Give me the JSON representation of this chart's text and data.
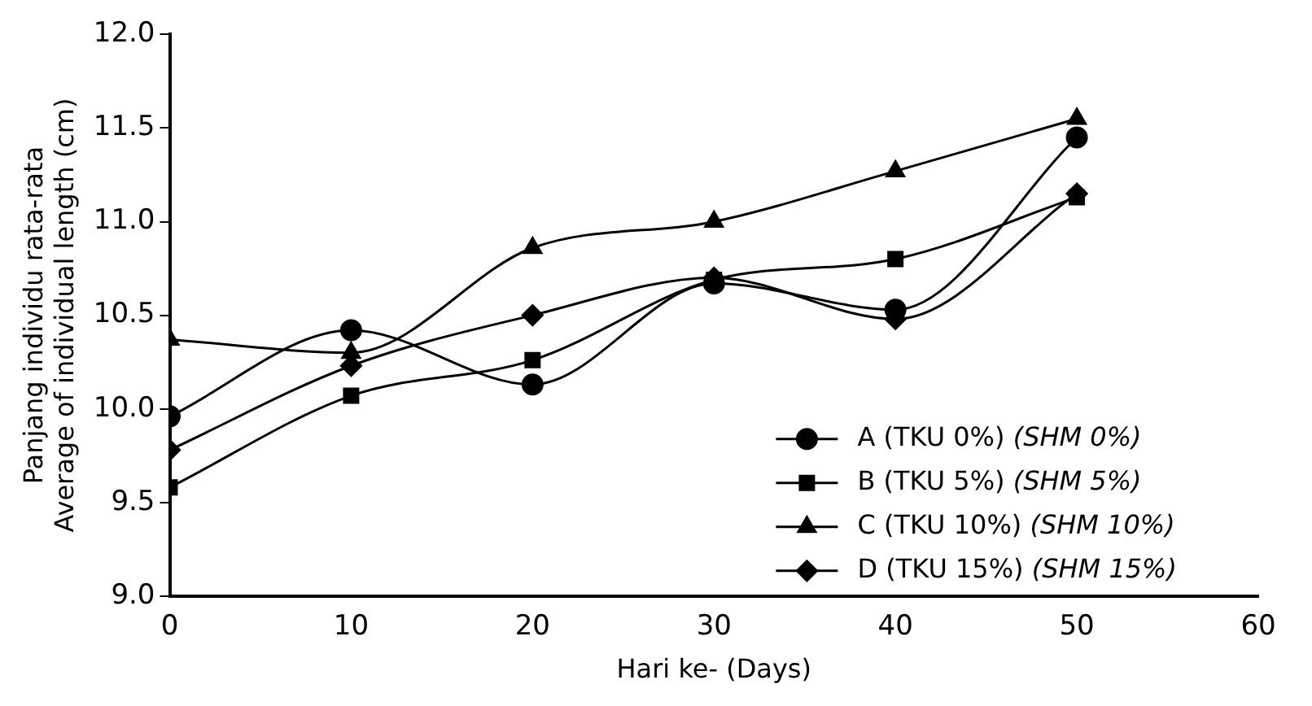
{
  "chart_data": {
    "type": "line",
    "xlabel": "Hari ke- (Days)",
    "ylabel": "Panjang individu rata-rata\nAverage of individual length (cm)",
    "x": [
      0,
      10,
      20,
      30,
      40,
      50
    ],
    "series": [
      {
        "name": "A (TKU 0%) (SHM 0%)",
        "color": "#000000",
        "marker": "circle",
        "values": [
          9.96,
          10.42,
          10.13,
          10.67,
          10.53,
          11.45
        ]
      },
      {
        "name": "B (TKU 5%) (SHM 5%)",
        "color": "#000000",
        "marker": "square",
        "values": [
          9.58,
          10.07,
          10.26,
          10.69,
          10.8,
          11.13
        ]
      },
      {
        "name": "C (TKU 10%) (SHM 10%)",
        "color": "#000000",
        "marker": "triangle",
        "values": [
          10.37,
          10.3,
          10.86,
          11.0,
          11.27,
          11.55
        ]
      },
      {
        "name": "D (TKU 15%) (SHM 15%)",
        "color": "#000000",
        "marker": "diamond",
        "values": [
          9.78,
          10.23,
          10.5,
          10.7,
          10.48,
          11.15
        ]
      }
    ],
    "xlim": [
      0,
      60
    ],
    "xticks": [
      0,
      10,
      20,
      30,
      40,
      50,
      60
    ],
    "ylim": [
      9,
      12
    ],
    "yticks": [
      {
        "value": 9,
        "label": "9.0"
      },
      {
        "value": 9.5,
        "label": "9.5"
      },
      {
        "value": 10,
        "label": "10.0"
      },
      {
        "value": 10.5,
        "label": "10.5"
      },
      {
        "value": 11,
        "label": "11.0"
      },
      {
        "value": 11.5,
        "label": "11.5"
      },
      {
        "value": 12,
        "label": "12.0"
      }
    ],
    "grid": false,
    "legend": "bottom right",
    "line_style": "solid"
  }
}
